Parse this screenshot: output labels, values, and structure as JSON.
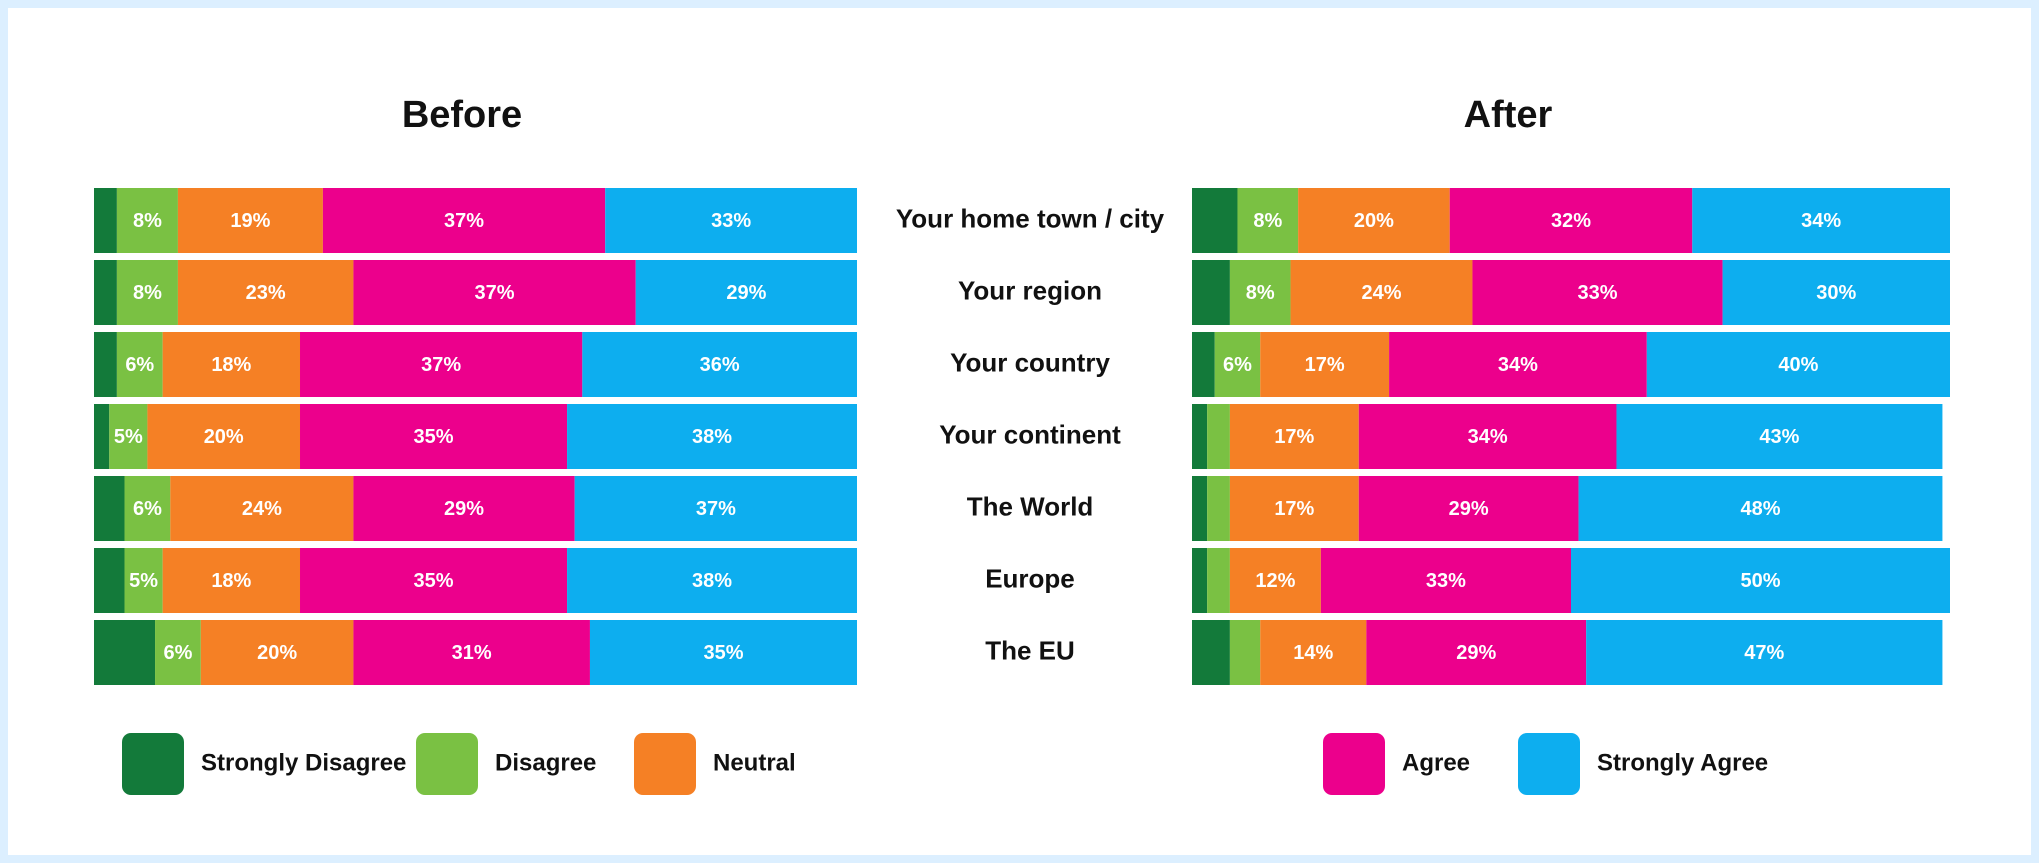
{
  "chart_data": [
    {
      "type": "bar",
      "stacked": true,
      "orientation": "horizontal",
      "title": "Before",
      "categories": [
        "Your home town / city",
        "Your region",
        "Your country",
        "Your continent",
        "The World",
        "Europe",
        "The EU"
      ],
      "xlim": [
        0,
        100
      ],
      "series": [
        {
          "name": "Strongly Disagree",
          "color": "#137a3a",
          "values": [
            3,
            3,
            3,
            2,
            4,
            4,
            8
          ],
          "value_labels": [
            null,
            null,
            null,
            null,
            null,
            null,
            null
          ]
        },
        {
          "name": "Disagree",
          "color": "#7ac143",
          "values": [
            8,
            8,
            6,
            5,
            6,
            5,
            6
          ],
          "value_labels": [
            "8%",
            "8%",
            "6%",
            "5%",
            "6%",
            "5%",
            "6%"
          ]
        },
        {
          "name": "Neutral",
          "color": "#f58025",
          "values": [
            19,
            23,
            18,
            20,
            24,
            18,
            20
          ],
          "value_labels": [
            "19%",
            "23%",
            "18%",
            "20%",
            "24%",
            "18%",
            "20%"
          ]
        },
        {
          "name": "Agree",
          "color": "#ec008c",
          "values": [
            37,
            37,
            37,
            35,
            29,
            35,
            31
          ],
          "value_labels": [
            "37%",
            "37%",
            "37%",
            "35%",
            "29%",
            "35%",
            "31%"
          ]
        },
        {
          "name": "Strongly Agree",
          "color": "#0daeef",
          "values": [
            33,
            29,
            36,
            38,
            37,
            38,
            35
          ],
          "value_labels": [
            "33%",
            "29%",
            "36%",
            "38%",
            "37%",
            "38%",
            "35%"
          ]
        }
      ]
    },
    {
      "type": "bar",
      "stacked": true,
      "orientation": "horizontal",
      "title": "After",
      "xlim": [
        0,
        100
      ],
      "series": [
        {
          "color": "#137a3a",
          "values": [
            6,
            5,
            3,
            2,
            2,
            2,
            5
          ],
          "value_labels": [
            null,
            null,
            null,
            null,
            null,
            null,
            null
          ]
        },
        {
          "color": "#7ac143",
          "values": [
            8,
            8,
            6,
            3,
            3,
            3,
            4
          ],
          "value_labels": [
            "8%",
            "8%",
            "6%",
            null,
            null,
            null,
            null
          ]
        },
        {
          "color": "#f58025",
          "values": [
            20,
            24,
            17,
            17,
            17,
            12,
            14
          ],
          "value_labels": [
            "20%",
            "24%",
            "17%",
            "17%",
            "17%",
            "12%",
            "14%"
          ]
        },
        {
          "color": "#ec008c",
          "values": [
            32,
            33,
            34,
            34,
            29,
            33,
            29
          ],
          "value_labels": [
            "32%",
            "33%",
            "34%",
            "34%",
            "29%",
            "33%",
            "29%"
          ]
        },
        {
          "color": "#0daeef",
          "values": [
            34,
            30,
            40,
            43,
            48,
            50,
            47
          ],
          "value_labels": [
            "34%",
            "30%",
            "40%",
            "43%",
            "48%",
            "50%",
            "47%"
          ]
        }
      ]
    }
  ]
}
